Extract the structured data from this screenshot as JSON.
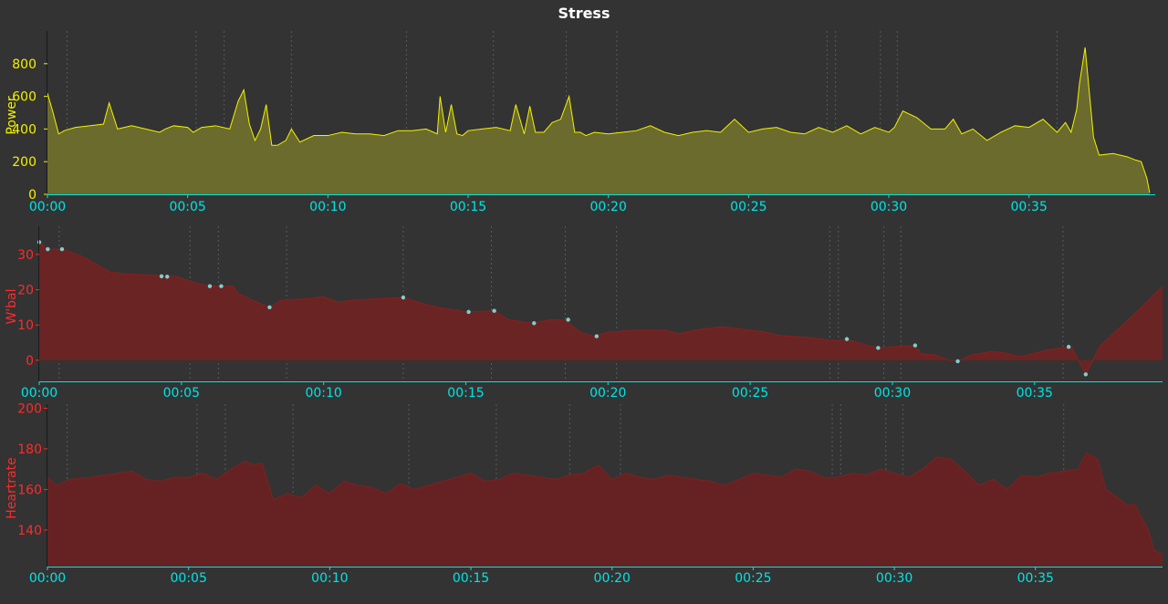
{
  "title": "Stress",
  "colors": {
    "background": "#333333",
    "axis": "#00e5e5",
    "tick_label": "#00e5e5",
    "grid": "#5a5a5a",
    "power_line": "#f2f200",
    "power_fill": "#6b6b2e",
    "power_label": "#f2f200",
    "wbal_line": "#8a1f1f",
    "wbal_fill": "#6a2424",
    "wbal_label": "#ff2a2a",
    "wbal_marker": "#7ecece",
    "hr_fill": "#662222",
    "hr_line": "#7a2222",
    "hr_label": "#ff2a2a"
  },
  "chart_data": [
    {
      "type": "area",
      "ylabel": "Power",
      "ylim": [
        0,
        1000
      ],
      "yticks": [
        0,
        200,
        400,
        600,
        800
      ],
      "xlim": [
        0,
        39.5
      ],
      "xtick_labels": [
        "00:00",
        "00:05",
        "00:10",
        "00:15",
        "00:20",
        "00:25",
        "00:30",
        "00:35"
      ],
      "xtick_minutes": [
        0,
        5,
        10,
        15,
        20,
        25,
        30,
        35
      ],
      "vertical_markers_minutes": [
        0.7,
        5.3,
        6.3,
        8.7,
        12.8,
        15.9,
        18.5,
        20.3,
        27.8,
        28.1,
        29.7,
        30.3,
        36.0
      ],
      "series": [
        {
          "x": [
            0,
            0.1,
            0.2,
            0.4,
            0.6,
            1,
            1.5,
            2,
            2.2,
            2.5,
            3,
            3.5,
            4,
            4.2,
            4.5,
            5,
            5.2,
            5.5,
            6,
            6.5,
            6.8,
            7,
            7.2,
            7.4,
            7.6,
            7.8,
            8,
            8.2,
            8.5,
            8.7,
            9,
            9.5,
            10,
            10.5,
            11,
            11.5,
            12,
            12.5,
            13,
            13.5,
            13.9,
            14,
            14.2,
            14.4,
            14.6,
            14.8,
            15,
            15.5,
            16,
            16.5,
            16.7,
            17,
            17.2,
            17.4,
            17.7,
            18,
            18.3,
            18.6,
            18.8,
            19,
            19.2,
            19.5,
            20,
            20.5,
            21,
            21.5,
            22,
            22.5,
            23,
            23.5,
            24,
            24.5,
            25,
            25.5,
            26,
            26.5,
            27,
            27.5,
            28,
            28.5,
            29,
            29.5,
            30,
            30.2,
            30.5,
            31,
            31.5,
            32,
            32.3,
            32.6,
            33,
            33.5,
            34,
            34.5,
            35,
            35.5,
            36,
            36.3,
            36.5,
            36.7,
            36.8,
            37,
            37.3,
            37.5,
            38,
            38.5,
            38.8,
            39,
            39.2,
            39.3
          ],
          "values": [
            620,
            560,
            500,
            370,
            390,
            410,
            420,
            430,
            560,
            400,
            420,
            400,
            380,
            400,
            420,
            410,
            380,
            410,
            420,
            400,
            570,
            640,
            430,
            330,
            400,
            550,
            300,
            300,
            330,
            400,
            320,
            360,
            360,
            380,
            370,
            370,
            360,
            390,
            390,
            400,
            370,
            600,
            380,
            550,
            370,
            360,
            390,
            400,
            410,
            390,
            550,
            370,
            540,
            380,
            380,
            440,
            460,
            600,
            380,
            380,
            360,
            380,
            370,
            380,
            390,
            420,
            380,
            360,
            380,
            390,
            380,
            460,
            380,
            400,
            410,
            380,
            370,
            410,
            380,
            420,
            370,
            410,
            380,
            410,
            510,
            470,
            400,
            400,
            460,
            370,
            400,
            330,
            380,
            420,
            410,
            460,
            380,
            440,
            380,
            520,
            680,
            900,
            350,
            240,
            250,
            230,
            210,
            200,
            100,
            10
          ]
        }
      ]
    },
    {
      "type": "area",
      "ylabel": "W'bal",
      "ylim": [
        -6,
        38
      ],
      "yticks": [
        0,
        10,
        20,
        30
      ],
      "xlim": [
        0,
        39.5
      ],
      "xtick_labels": [
        "00:00",
        "00:05",
        "00:10",
        "00:15",
        "00:20",
        "00:25",
        "00:30",
        "00:35"
      ],
      "xtick_minutes": [
        0,
        5,
        10,
        15,
        20,
        25,
        30,
        35
      ],
      "vertical_markers_minutes": [
        0.7,
        5.3,
        6.3,
        8.7,
        12.8,
        15.9,
        18.5,
        20.3,
        27.8,
        28.1,
        29.7,
        30.3,
        36.0
      ],
      "series": [
        {
          "x": [
            0,
            0.3,
            0.8,
            1.5,
            2.5,
            3,
            4.3,
            4.8,
            5.5,
            6,
            6.8,
            7,
            7.5,
            8.1,
            8.5,
            9.5,
            10,
            10.5,
            11,
            12,
            12.8,
            13.5,
            14,
            15,
            16,
            16.5,
            17.3,
            18,
            18.5,
            19,
            19.5,
            20,
            21,
            22,
            22.5,
            23,
            24,
            25,
            25.5,
            26,
            27,
            28,
            28.4,
            29,
            29.5,
            30,
            30.8,
            31,
            31.5,
            32,
            32.3,
            32.8,
            33.5,
            34,
            34.5,
            35,
            35.5,
            36,
            36.3,
            36.8,
            37.3,
            38.5,
            39.5
          ],
          "values": [
            33.5,
            31.5,
            31.5,
            29.5,
            25,
            24.5,
            24,
            23.8,
            22,
            21,
            21,
            19,
            17,
            15,
            17,
            17.5,
            18,
            16.5,
            17,
            17.5,
            17.8,
            16,
            15,
            13.7,
            14,
            11.5,
            10.5,
            11.5,
            11.3,
            8,
            6.8,
            8,
            8.5,
            8.5,
            7.5,
            8.5,
            9.5,
            8.5,
            8,
            7,
            6.5,
            5.5,
            6,
            4.5,
            3.5,
            3.8,
            4.2,
            1.8,
            1.5,
            0,
            -0.3,
            1.5,
            2.5,
            2,
            1,
            2,
            3,
            3.5,
            3.8,
            -4,
            4,
            13,
            21
          ]
        }
      ],
      "markers": {
        "x": [
          0,
          0.3,
          0.8,
          4.3,
          4.5,
          6,
          6.4,
          8.1,
          12.8,
          15.1,
          16,
          17.4,
          18.6,
          19.6,
          28.4,
          29.5,
          30.8,
          32.3,
          36.2,
          36.8
        ],
        "y": [
          33.5,
          31.5,
          31.5,
          23.8,
          23.7,
          21,
          21,
          15,
          17.8,
          13.7,
          14,
          10.5,
          11.5,
          6.8,
          6,
          3.5,
          4.2,
          -0.3,
          3.8,
          -4
        ]
      }
    },
    {
      "type": "area",
      "ylabel": "Heartrate",
      "ylim": [
        122,
        202
      ],
      "yticks": [
        140,
        160,
        180,
        200
      ],
      "xlim": [
        0,
        39.5
      ],
      "xtick_labels": [
        "00:00",
        "00:05",
        "00:10",
        "00:15",
        "00:20",
        "00:25",
        "00:30",
        "00:35"
      ],
      "xtick_minutes": [
        0,
        5,
        10,
        15,
        20,
        25,
        30,
        35
      ],
      "vertical_markers_minutes": [
        0.7,
        5.3,
        6.3,
        8.7,
        12.8,
        15.9,
        18.5,
        20.3,
        27.8,
        28.1,
        29.7,
        30.3,
        36.0
      ],
      "series": [
        {
          "x": [
            0,
            0.3,
            0.8,
            1.5,
            2.5,
            3,
            3.5,
            4,
            4.5,
            5,
            5.5,
            6,
            6.5,
            7,
            7.3,
            7.6,
            8,
            8.5,
            9,
            9.5,
            10,
            10.5,
            11,
            11.5,
            12,
            12.5,
            13,
            13.5,
            14,
            14.5,
            15,
            15.5,
            16,
            16.5,
            17,
            17.5,
            18,
            18.5,
            19,
            19.5,
            20,
            20.5,
            21,
            21.5,
            22,
            22.5,
            23,
            23.5,
            24,
            24.5,
            25,
            25.5,
            26,
            26.5,
            27,
            27.5,
            28,
            28.5,
            29,
            29.5,
            30,
            30.5,
            31,
            31.5,
            32,
            32.5,
            33,
            33.5,
            34,
            34.5,
            35,
            35.5,
            36,
            36.5,
            36.8,
            37.2,
            37.5,
            38,
            38.3,
            38.5,
            39,
            39.2,
            39.5
          ],
          "values": [
            166,
            162,
            165,
            166,
            168,
            169,
            165,
            164,
            166,
            166,
            168,
            165,
            170,
            174,
            172,
            173,
            155,
            158,
            156,
            162,
            158,
            164,
            162,
            161,
            158,
            163,
            160,
            162,
            164,
            166,
            168,
            164,
            165,
            168,
            167,
            166,
            165,
            167,
            168,
            172,
            165,
            168,
            166,
            165,
            167,
            166,
            165,
            164,
            162,
            165,
            168,
            167,
            166,
            170,
            169,
            166,
            166,
            168,
            167,
            170,
            168,
            166,
            170,
            176,
            175,
            169,
            162,
            165,
            160,
            167,
            166,
            168,
            169,
            170,
            178,
            175,
            160,
            155,
            152,
            153,
            140,
            130,
            128
          ]
        }
      ]
    }
  ]
}
